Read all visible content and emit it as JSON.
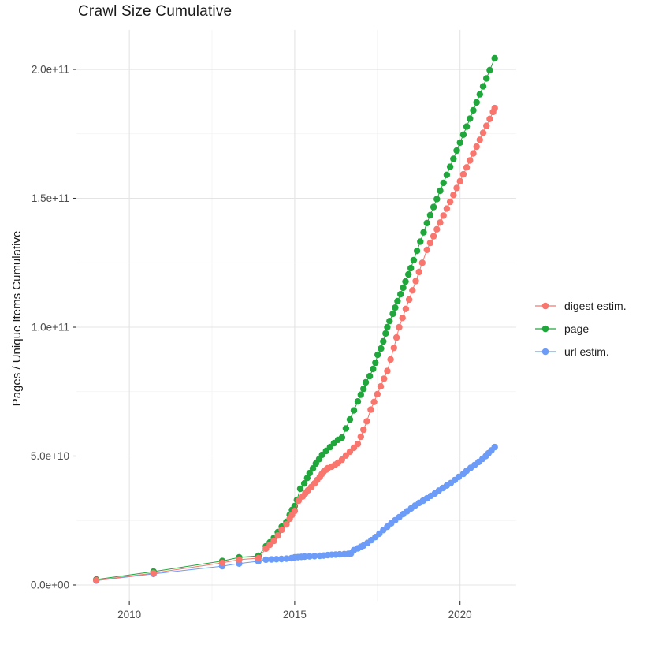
{
  "chart_data": {
    "type": "line",
    "title": "Crawl Size Cumulative",
    "xlabel": "",
    "ylabel": "Pages / Unique Items Cumulative",
    "grid": "on",
    "background": "#ffffff",
    "colors": {
      "major_grid": "#e4e4e4",
      "minor_grid": "#f2f2f2",
      "tick": "#333333",
      "tick_label": "#4d4d4d"
    },
    "axes": {
      "x_range": [
        2008.4,
        2021.7
      ],
      "y_range": [
        -6120000000.0,
        215300000000.0
      ],
      "x_ticks": [
        {
          "v": 2010,
          "label": "2010"
        },
        {
          "v": 2015,
          "label": "2015"
        },
        {
          "v": 2020,
          "label": "2020"
        }
      ],
      "y_ticks": [
        {
          "v": 0,
          "label": "0.0e+00"
        },
        {
          "v": 50000000000.0,
          "label": "5.0e+10"
        },
        {
          "v": 100000000000.0,
          "label": "1.0e+11"
        },
        {
          "v": 150000000000.0,
          "label": "1.5e+11"
        },
        {
          "v": 200000000000.0,
          "label": "2.0e+11"
        }
      ],
      "x_minor": [
        2012.5,
        2017.5
      ],
      "y_minor": [
        25000000000.0,
        75000000000.0,
        125000000000.0,
        175000000000.0
      ]
    },
    "legend": {
      "position": "right",
      "items": [
        {
          "label": "digest estim.",
          "color": "#F8766D"
        },
        {
          "label": "page",
          "color": "#1FA73C"
        },
        {
          "label": "url estim.",
          "color": "#6C9CF8"
        }
      ]
    },
    "series": [
      {
        "name": "url estim.",
        "color": "#6C9CF8",
        "points": [
          [
            2009.0,
            1700000000.0
          ],
          [
            2010.73,
            4300000000.0
          ],
          [
            2012.81,
            7300000000.0
          ],
          [
            2013.32,
            8300000000.0
          ],
          [
            2013.9,
            9200000000.0
          ],
          [
            2014.13,
            9800000000.0
          ],
          [
            2014.3,
            9900000000.0
          ],
          [
            2014.45,
            10000000000.0
          ],
          [
            2014.6,
            10100000000.0
          ],
          [
            2014.75,
            10200000000.0
          ],
          [
            2014.9,
            10400000000.0
          ],
          [
            2015.0,
            10700000000.0
          ],
          [
            2015.1,
            10800000000.0
          ],
          [
            2015.2,
            10900000000.0
          ],
          [
            2015.3,
            11000000000.0
          ],
          [
            2015.45,
            11100000000.0
          ],
          [
            2015.6,
            11200000000.0
          ],
          [
            2015.76,
            11300000000.0
          ],
          [
            2015.88,
            11400000000.0
          ],
          [
            2016.0,
            11600000000.0
          ],
          [
            2016.12,
            11700000000.0
          ],
          [
            2016.24,
            11800000000.0
          ],
          [
            2016.36,
            11900000000.0
          ],
          [
            2016.5,
            12000000000.0
          ],
          [
            2016.62,
            12100000000.0
          ],
          [
            2016.7,
            12200000000.0
          ],
          [
            2016.79,
            13500000000.0
          ],
          [
            2016.91,
            14200000000.0
          ],
          [
            2017.0,
            14800000000.0
          ],
          [
            2017.08,
            15300000000.0
          ],
          [
            2017.2,
            16300000000.0
          ],
          [
            2017.32,
            17400000000.0
          ],
          [
            2017.44,
            18600000000.0
          ],
          [
            2017.56,
            19900000000.0
          ],
          [
            2017.68,
            21300000000.0
          ],
          [
            2017.8,
            22600000000.0
          ],
          [
            2017.92,
            23900000000.0
          ],
          [
            2018.04,
            25100000000.0
          ],
          [
            2018.16,
            26300000000.0
          ],
          [
            2018.28,
            27500000000.0
          ],
          [
            2018.4,
            28600000000.0
          ],
          [
            2018.52,
            29700000000.0
          ],
          [
            2018.64,
            30800000000.0
          ],
          [
            2018.76,
            31800000000.0
          ],
          [
            2018.88,
            32700000000.0
          ],
          [
            2019.0,
            33600000000.0
          ],
          [
            2019.12,
            34600000000.0
          ],
          [
            2019.24,
            35500000000.0
          ],
          [
            2019.36,
            36600000000.0
          ],
          [
            2019.48,
            37600000000.0
          ],
          [
            2019.6,
            38600000000.0
          ],
          [
            2019.72,
            39500000000.0
          ],
          [
            2019.84,
            40700000000.0
          ],
          [
            2019.96,
            41900000000.0
          ],
          [
            2020.1,
            43100000000.0
          ],
          [
            2020.2,
            44300000000.0
          ],
          [
            2020.32,
            45400000000.0
          ],
          [
            2020.44,
            46500000000.0
          ],
          [
            2020.56,
            47700000000.0
          ],
          [
            2020.68,
            48900000000.0
          ],
          [
            2020.78,
            50000000000.0
          ],
          [
            2020.86,
            51100000000.0
          ],
          [
            2020.95,
            52200000000.0
          ],
          [
            2021.05,
            53500000000.0
          ]
        ]
      },
      {
        "name": "page",
        "color": "#1FA73C",
        "points": [
          [
            2009.0,
            2100000000.0
          ],
          [
            2010.73,
            5200000000.0
          ],
          [
            2012.81,
            9300000000.0
          ],
          [
            2013.32,
            10700000000.0
          ],
          [
            2013.9,
            11300000000.0
          ],
          [
            2014.13,
            15000000000.0
          ],
          [
            2014.25,
            16500000000.0
          ],
          [
            2014.37,
            18300000000.0
          ],
          [
            2014.49,
            20500000000.0
          ],
          [
            2014.61,
            22600000000.0
          ],
          [
            2014.75,
            24500000000.0
          ],
          [
            2014.85,
            27200000000.0
          ],
          [
            2014.92,
            29100000000.0
          ],
          [
            2015.0,
            30600000000.0
          ],
          [
            2015.07,
            33000000000.0
          ],
          [
            2015.17,
            37300000000.0
          ],
          [
            2015.29,
            39400000000.0
          ],
          [
            2015.38,
            41500000000.0
          ],
          [
            2015.45,
            43400000000.0
          ],
          [
            2015.55,
            45200000000.0
          ],
          [
            2015.64,
            47100000000.0
          ],
          [
            2015.74,
            48800000000.0
          ],
          [
            2015.83,
            50500000000.0
          ],
          [
            2015.95,
            52000000000.0
          ],
          [
            2016.07,
            53500000000.0
          ],
          [
            2016.19,
            55000000000.0
          ],
          [
            2016.31,
            56300000000.0
          ],
          [
            2016.43,
            57200000000.0
          ],
          [
            2016.55,
            60700000000.0
          ],
          [
            2016.67,
            64200000000.0
          ],
          [
            2016.79,
            67700000000.0
          ],
          [
            2016.91,
            71200000000.0
          ],
          [
            2017.0,
            73800000000.0
          ],
          [
            2017.08,
            76100000000.0
          ],
          [
            2017.15,
            78600000000.0
          ],
          [
            2017.27,
            81000000000.0
          ],
          [
            2017.37,
            83800000000.0
          ],
          [
            2017.44,
            86200000000.0
          ],
          [
            2017.51,
            89300000000.0
          ],
          [
            2017.61,
            91700000000.0
          ],
          [
            2017.68,
            94500000000.0
          ],
          [
            2017.75,
            97600000000.0
          ],
          [
            2017.8,
            100000000000.0
          ],
          [
            2017.87,
            102400000000.0
          ],
          [
            2017.97,
            105200000000.0
          ],
          [
            2018.04,
            107600000000.0
          ],
          [
            2018.11,
            110100000000.0
          ],
          [
            2018.2,
            112800000000.0
          ],
          [
            2018.28,
            115300000000.0
          ],
          [
            2018.35,
            117700000000.0
          ],
          [
            2018.44,
            120500000000.0
          ],
          [
            2018.51,
            122900000000.0
          ],
          [
            2018.6,
            126000000000.0
          ],
          [
            2018.7,
            129600000000.0
          ],
          [
            2018.8,
            133200000000.0
          ],
          [
            2018.9,
            136800000000.0
          ],
          [
            2019.0,
            140400000000.0
          ],
          [
            2019.1,
            143500000000.0
          ],
          [
            2019.2,
            146600000000.0
          ],
          [
            2019.3,
            149700000000.0
          ],
          [
            2019.4,
            152900000000.0
          ],
          [
            2019.5,
            156000000000.0
          ],
          [
            2019.6,
            159100000000.0
          ],
          [
            2019.7,
            162200000000.0
          ],
          [
            2019.8,
            165300000000.0
          ],
          [
            2019.9,
            168500000000.0
          ],
          [
            2020.0,
            171600000000.0
          ],
          [
            2020.1,
            174700000000.0
          ],
          [
            2020.2,
            177800000000.0
          ],
          [
            2020.3,
            180900000000.0
          ],
          [
            2020.4,
            184100000000.0
          ],
          [
            2020.5,
            187200000000.0
          ],
          [
            2020.6,
            190300000000.0
          ],
          [
            2020.7,
            193400000000.0
          ],
          [
            2020.8,
            196500000000.0
          ],
          [
            2020.9,
            199700000000.0
          ],
          [
            2021.05,
            204300000000.0
          ]
        ]
      },
      {
        "name": "digest estim.",
        "color": "#F8766D",
        "points": [
          [
            2009.0,
            1800000000.0
          ],
          [
            2010.73,
            4600000000.0
          ],
          [
            2012.81,
            8600000000.0
          ],
          [
            2013.32,
            9800000000.0
          ],
          [
            2013.9,
            10400000000.0
          ],
          [
            2014.13,
            14100000000.0
          ],
          [
            2014.25,
            15600000000.0
          ],
          [
            2014.37,
            17100000000.0
          ],
          [
            2014.49,
            19200000000.0
          ],
          [
            2014.61,
            21400000000.0
          ],
          [
            2014.75,
            23500000000.0
          ],
          [
            2014.85,
            25700000000.0
          ],
          [
            2014.92,
            27200000000.0
          ],
          [
            2015.0,
            28700000000.0
          ],
          [
            2015.12,
            32700000000.0
          ],
          [
            2015.24,
            34300000000.0
          ],
          [
            2015.32,
            35500000000.0
          ],
          [
            2015.4,
            36700000000.0
          ],
          [
            2015.5,
            38000000000.0
          ],
          [
            2015.6,
            39400000000.0
          ],
          [
            2015.68,
            40700000000.0
          ],
          [
            2015.76,
            41900000000.0
          ],
          [
            2015.82,
            43000000000.0
          ],
          [
            2015.88,
            44000000000.0
          ],
          [
            2015.95,
            44700000000.0
          ],
          [
            2016.0,
            45300000000.0
          ],
          [
            2016.12,
            45900000000.0
          ],
          [
            2016.22,
            46600000000.0
          ],
          [
            2016.31,
            47400000000.0
          ],
          [
            2016.43,
            48600000000.0
          ],
          [
            2016.55,
            50200000000.0
          ],
          [
            2016.67,
            51700000000.0
          ],
          [
            2016.79,
            53200000000.0
          ],
          [
            2016.91,
            54700000000.0
          ],
          [
            2017.0,
            57500000000.0
          ],
          [
            2017.08,
            60200000000.0
          ],
          [
            2017.18,
            63500000000.0
          ],
          [
            2017.3,
            68000000000.0
          ],
          [
            2017.4,
            71000000000.0
          ],
          [
            2017.5,
            74000000000.0
          ],
          [
            2017.6,
            77000000000.0
          ],
          [
            2017.7,
            80000000000.0
          ],
          [
            2017.8,
            83000000000.0
          ],
          [
            2017.9,
            87500000000.0
          ],
          [
            2018.0,
            92000000000.0
          ],
          [
            2018.08,
            96000000000.0
          ],
          [
            2018.16,
            100000000000.0
          ],
          [
            2018.26,
            103600000000.0
          ],
          [
            2018.36,
            107100000000.0
          ],
          [
            2018.46,
            110700000000.0
          ],
          [
            2018.56,
            114300000000.0
          ],
          [
            2018.66,
            117900000000.0
          ],
          [
            2018.76,
            121400000000.0
          ],
          [
            2018.86,
            125000000000.0
          ],
          [
            2019.0,
            130000000000.0
          ],
          [
            2019.1,
            132700000000.0
          ],
          [
            2019.2,
            135300000000.0
          ],
          [
            2019.3,
            138000000000.0
          ],
          [
            2019.4,
            140600000000.0
          ],
          [
            2019.5,
            143300000000.0
          ],
          [
            2019.6,
            146000000000.0
          ],
          [
            2019.7,
            148600000000.0
          ],
          [
            2019.8,
            151300000000.0
          ],
          [
            2019.9,
            154000000000.0
          ],
          [
            2020.0,
            156600000000.0
          ],
          [
            2020.1,
            159300000000.0
          ],
          [
            2020.2,
            162000000000.0
          ],
          [
            2020.3,
            164700000000.0
          ],
          [
            2020.4,
            167400000000.0
          ],
          [
            2020.5,
            170000000000.0
          ],
          [
            2020.6,
            172700000000.0
          ],
          [
            2020.7,
            175400000000.0
          ],
          [
            2020.8,
            178100000000.0
          ],
          [
            2020.9,
            180800000000.0
          ],
          [
            2021.0,
            183500000000.0
          ],
          [
            2021.05,
            185000000000.0
          ]
        ]
      }
    ]
  }
}
